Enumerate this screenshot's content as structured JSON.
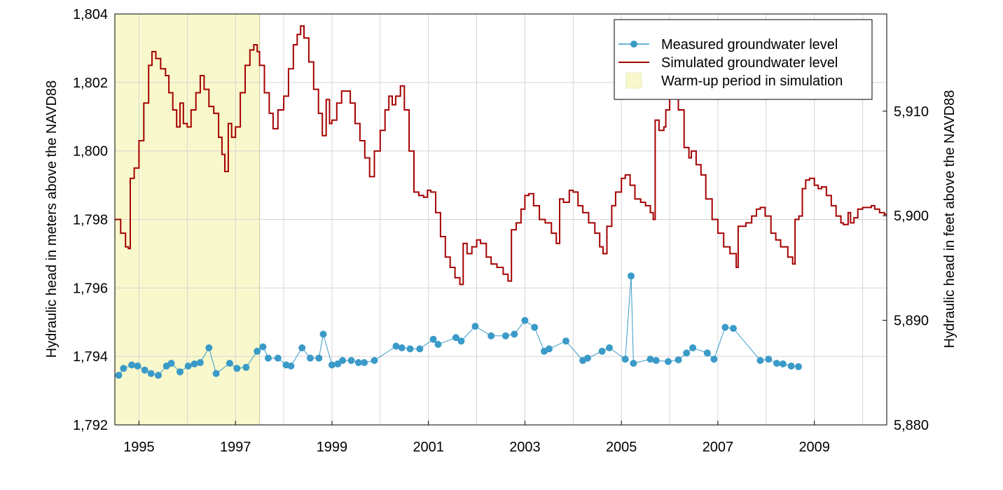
{
  "chart_data": {
    "type": "line",
    "xlabel": "",
    "ylabel_left": "Hydraulic head in meters above the NAVD88",
    "ylabel_right": "Hydraulic head in feet above the NAVD88",
    "xlim": [
      1994.5,
      2010.5
    ],
    "ylim_left": [
      1792,
      1804
    ],
    "ylim_right": [
      5880,
      5919.29
    ],
    "grid": true,
    "legend_placement": "top-right",
    "x_ticks": [
      {
        "value": 1995,
        "label": "1995"
      },
      {
        "value": 1997,
        "label": "1997"
      },
      {
        "value": 1999,
        "label": "1999"
      },
      {
        "value": 2001,
        "label": "2001"
      },
      {
        "value": 2003,
        "label": "2003"
      },
      {
        "value": 2005,
        "label": "2005"
      },
      {
        "value": 2007,
        "label": "2007"
      },
      {
        "value": 2009,
        "label": "2009"
      }
    ],
    "x_gridlines": [
      1995,
      1996,
      1997,
      1998,
      1999,
      2000,
      2001,
      2002,
      2003,
      2004,
      2005,
      2006,
      2007,
      2008,
      2009,
      2010
    ],
    "y_ticks_left": [
      {
        "value": 1792,
        "label": "1,792"
      },
      {
        "value": 1794,
        "label": "1,794"
      },
      {
        "value": 1796,
        "label": "1,796"
      },
      {
        "value": 1798,
        "label": "1,798"
      },
      {
        "value": 1800,
        "label": "1,800"
      },
      {
        "value": 1802,
        "label": "1,802"
      },
      {
        "value": 1804,
        "label": "1,804"
      }
    ],
    "y_ticks_right": [
      {
        "value": 5880,
        "label": "5,880"
      },
      {
        "value": 5890,
        "label": "5,890"
      },
      {
        "value": 5900,
        "label": "5,900"
      },
      {
        "value": 5910,
        "label": "5,910"
      }
    ],
    "shaded_regions": [
      {
        "name": "Warm-up period in simulation",
        "x_start": 1994.5,
        "x_end": 1997.5,
        "color": "#f8f8cc"
      }
    ],
    "legend": [
      {
        "label": "Measured groundwater level",
        "kind": "line-marker",
        "color": "#3a9ac8"
      },
      {
        "label": "Simulated groundwater level",
        "kind": "line",
        "color": "#a50000"
      },
      {
        "label": "Warm-up period in simulation",
        "kind": "patch",
        "color": "#f8f8cc"
      }
    ],
    "series": [
      {
        "name": "Simulated groundwater level",
        "color": "#a50000",
        "style": "step-line",
        "points": [
          [
            1994.5,
            1798.0
          ],
          [
            1994.62,
            1797.6
          ],
          [
            1994.72,
            1797.2
          ],
          [
            1994.78,
            1797.15
          ],
          [
            1994.82,
            1799.2
          ],
          [
            1994.9,
            1799.5
          ],
          [
            1995.0,
            1800.3
          ],
          [
            1995.1,
            1801.4
          ],
          [
            1995.2,
            1802.5
          ],
          [
            1995.27,
            1802.9
          ],
          [
            1995.35,
            1802.7
          ],
          [
            1995.45,
            1802.4
          ],
          [
            1995.55,
            1802.2
          ],
          [
            1995.62,
            1801.7
          ],
          [
            1995.7,
            1801.2
          ],
          [
            1995.78,
            1800.7
          ],
          [
            1995.85,
            1801.4
          ],
          [
            1995.92,
            1800.8
          ],
          [
            1996.0,
            1800.7
          ],
          [
            1996.08,
            1801.2
          ],
          [
            1996.18,
            1801.7
          ],
          [
            1996.27,
            1802.2
          ],
          [
            1996.35,
            1801.8
          ],
          [
            1996.45,
            1801.3
          ],
          [
            1996.55,
            1801.1
          ],
          [
            1996.65,
            1800.4
          ],
          [
            1996.72,
            1799.9
          ],
          [
            1996.78,
            1799.4
          ],
          [
            1996.85,
            1800.8
          ],
          [
            1996.92,
            1800.4
          ],
          [
            1997.0,
            1800.7
          ],
          [
            1997.1,
            1801.7
          ],
          [
            1997.2,
            1802.5
          ],
          [
            1997.3,
            1802.95
          ],
          [
            1997.38,
            1803.1
          ],
          [
            1997.45,
            1802.9
          ],
          [
            1997.5,
            1802.5
          ],
          [
            1997.6,
            1801.7
          ],
          [
            1997.7,
            1801.1
          ],
          [
            1997.78,
            1800.65
          ],
          [
            1997.88,
            1801.2
          ],
          [
            1998.0,
            1801.6
          ],
          [
            1998.1,
            1802.4
          ],
          [
            1998.2,
            1803.1
          ],
          [
            1998.28,
            1803.4
          ],
          [
            1998.35,
            1803.65
          ],
          [
            1998.42,
            1803.3
          ],
          [
            1998.52,
            1802.6
          ],
          [
            1998.62,
            1801.8
          ],
          [
            1998.72,
            1801.1
          ],
          [
            1998.8,
            1800.45
          ],
          [
            1998.88,
            1801.5
          ],
          [
            1998.95,
            1800.8
          ],
          [
            1999.0,
            1800.9
          ],
          [
            1999.1,
            1801.4
          ],
          [
            1999.2,
            1801.75
          ],
          [
            1999.28,
            1801.75
          ],
          [
            1999.38,
            1801.4
          ],
          [
            1999.48,
            1800.8
          ],
          [
            1999.58,
            1800.3
          ],
          [
            1999.68,
            1799.8
          ],
          [
            1999.78,
            1799.25
          ],
          [
            1999.88,
            1800.0
          ],
          [
            2000.0,
            1800.6
          ],
          [
            2000.1,
            1801.2
          ],
          [
            2000.18,
            1801.6
          ],
          [
            2000.25,
            1801.35
          ],
          [
            2000.32,
            1801.6
          ],
          [
            2000.42,
            1801.9
          ],
          [
            2000.5,
            1801.2
          ],
          [
            2000.6,
            1800.0
          ],
          [
            2000.7,
            1798.8
          ],
          [
            2000.8,
            1798.7
          ],
          [
            2000.9,
            1798.65
          ],
          [
            2000.98,
            1798.85
          ],
          [
            2001.05,
            1798.8
          ],
          [
            2001.15,
            1798.2
          ],
          [
            2001.25,
            1797.5
          ],
          [
            2001.35,
            1796.9
          ],
          [
            2001.45,
            1796.6
          ],
          [
            2001.55,
            1796.3
          ],
          [
            2001.65,
            1796.1
          ],
          [
            2001.72,
            1797.3
          ],
          [
            2001.8,
            1797.0
          ],
          [
            2001.9,
            1797.2
          ],
          [
            2002.0,
            1797.4
          ],
          [
            2002.08,
            1797.3
          ],
          [
            2002.2,
            1796.9
          ],
          [
            2002.3,
            1796.7
          ],
          [
            2002.42,
            1796.6
          ],
          [
            2002.55,
            1796.4
          ],
          [
            2002.65,
            1796.2
          ],
          [
            2002.72,
            1797.7
          ],
          [
            2002.82,
            1797.9
          ],
          [
            2002.92,
            1798.3
          ],
          [
            2003.0,
            1798.7
          ],
          [
            2003.08,
            1798.75
          ],
          [
            2003.18,
            1798.4
          ],
          [
            2003.3,
            1798.0
          ],
          [
            2003.42,
            1797.9
          ],
          [
            2003.55,
            1797.6
          ],
          [
            2003.65,
            1797.3
          ],
          [
            2003.72,
            1798.6
          ],
          [
            2003.8,
            1798.5
          ],
          [
            2003.92,
            1798.85
          ],
          [
            2004.0,
            1798.8
          ],
          [
            2004.1,
            1798.4
          ],
          [
            2004.2,
            1798.2
          ],
          [
            2004.32,
            1797.9
          ],
          [
            2004.45,
            1797.6
          ],
          [
            2004.55,
            1797.2
          ],
          [
            2004.62,
            1797.0
          ],
          [
            2004.7,
            1797.8
          ],
          [
            2004.8,
            1798.4
          ],
          [
            2004.88,
            1798.8
          ],
          [
            2005.0,
            1799.2
          ],
          [
            2005.08,
            1799.3
          ],
          [
            2005.18,
            1799.0
          ],
          [
            2005.28,
            1798.6
          ],
          [
            2005.4,
            1798.5
          ],
          [
            2005.5,
            1798.4
          ],
          [
            2005.6,
            1798.2
          ],
          [
            2005.66,
            1798.0
          ],
          [
            2005.7,
            1800.9
          ],
          [
            2005.78,
            1800.6
          ],
          [
            2005.88,
            1800.7
          ],
          [
            2005.92,
            1801.2
          ],
          [
            2006.0,
            1802.0
          ],
          [
            2006.08,
            1801.9
          ],
          [
            2006.18,
            1801.2
          ],
          [
            2006.3,
            1800.1
          ],
          [
            2006.4,
            1799.8
          ],
          [
            2006.45,
            1800.0
          ],
          [
            2006.55,
            1799.6
          ],
          [
            2006.65,
            1799.3
          ],
          [
            2006.75,
            1798.6
          ],
          [
            2006.88,
            1798.0
          ],
          [
            2007.0,
            1797.6
          ],
          [
            2007.12,
            1797.2
          ],
          [
            2007.25,
            1797.0
          ],
          [
            2007.38,
            1796.6
          ],
          [
            2007.42,
            1797.8
          ],
          [
            2007.5,
            1797.8
          ],
          [
            2007.58,
            1797.9
          ],
          [
            2007.7,
            1798.1
          ],
          [
            2007.8,
            1798.3
          ],
          [
            2007.88,
            1798.35
          ],
          [
            2007.98,
            1798.1
          ],
          [
            2008.1,
            1797.6
          ],
          [
            2008.2,
            1797.4
          ],
          [
            2008.3,
            1797.2
          ],
          [
            2008.45,
            1796.9
          ],
          [
            2008.55,
            1796.7
          ],
          [
            2008.6,
            1798.0
          ],
          [
            2008.68,
            1798.1
          ],
          [
            2008.75,
            1798.9
          ],
          [
            2008.82,
            1799.15
          ],
          [
            2008.9,
            1799.2
          ],
          [
            2009.0,
            1799.0
          ],
          [
            2009.08,
            1798.9
          ],
          [
            2009.15,
            1798.95
          ],
          [
            2009.25,
            1798.7
          ],
          [
            2009.35,
            1798.4
          ],
          [
            2009.45,
            1798.1
          ],
          [
            2009.55,
            1797.9
          ],
          [
            2009.6,
            1797.85
          ],
          [
            2009.7,
            1798.2
          ],
          [
            2009.75,
            1797.9
          ],
          [
            2009.82,
            1798.05
          ],
          [
            2009.9,
            1798.3
          ],
          [
            2010.0,
            1798.35
          ],
          [
            2010.1,
            1798.35
          ],
          [
            2010.18,
            1798.4
          ],
          [
            2010.25,
            1798.3
          ],
          [
            2010.35,
            1798.2
          ],
          [
            2010.45,
            1798.15
          ],
          [
            2010.5,
            1798.15
          ]
        ]
      },
      {
        "name": "Measured groundwater level",
        "color": "#3a9ac8",
        "style": "line-marker",
        "points": [
          [
            1994.58,
            1793.45
          ],
          [
            1994.68,
            1793.65
          ],
          [
            1994.85,
            1793.75
          ],
          [
            1994.97,
            1793.72
          ],
          [
            1995.12,
            1793.6
          ],
          [
            1995.25,
            1793.5
          ],
          [
            1995.4,
            1793.45
          ],
          [
            1995.57,
            1793.72
          ],
          [
            1995.67,
            1793.8
          ],
          [
            1995.85,
            1793.55
          ],
          [
            1996.02,
            1793.72
          ],
          [
            1996.15,
            1793.78
          ],
          [
            1996.27,
            1793.82
          ],
          [
            1996.45,
            1794.25
          ],
          [
            1996.6,
            1793.5
          ],
          [
            1996.88,
            1793.8
          ],
          [
            1997.03,
            1793.65
          ],
          [
            1997.22,
            1793.68
          ],
          [
            1997.45,
            1794.15
          ],
          [
            1997.57,
            1794.28
          ],
          [
            1997.68,
            1793.95
          ],
          [
            1997.88,
            1793.95
          ],
          [
            1998.05,
            1793.75
          ],
          [
            1998.15,
            1793.72
          ],
          [
            1998.38,
            1794.25
          ],
          [
            1998.55,
            1793.95
          ],
          [
            1998.73,
            1793.95
          ],
          [
            1998.82,
            1794.65
          ],
          [
            1999.0,
            1793.75
          ],
          [
            1999.12,
            1793.78
          ],
          [
            1999.22,
            1793.88
          ],
          [
            1999.4,
            1793.88
          ],
          [
            1999.55,
            1793.82
          ],
          [
            1999.67,
            1793.82
          ],
          [
            1999.88,
            1793.88
          ],
          [
            2000.33,
            1794.3
          ],
          [
            2000.45,
            1794.25
          ],
          [
            2000.62,
            1794.22
          ],
          [
            2000.82,
            1794.22
          ],
          [
            2001.1,
            1794.5
          ],
          [
            2001.2,
            1794.35
          ],
          [
            2001.57,
            1794.55
          ],
          [
            2001.68,
            1794.45
          ],
          [
            2001.97,
            1794.88
          ],
          [
            2002.3,
            1794.6
          ],
          [
            2002.6,
            1794.6
          ],
          [
            2002.78,
            1794.65
          ],
          [
            2003.0,
            1795.05
          ],
          [
            2003.2,
            1794.85
          ],
          [
            2003.4,
            1794.15
          ],
          [
            2003.5,
            1794.22
          ],
          [
            2003.85,
            1794.45
          ],
          [
            2004.2,
            1793.88
          ],
          [
            2004.3,
            1793.95
          ],
          [
            2004.6,
            1794.15
          ],
          [
            2004.75,
            1794.25
          ],
          [
            2005.08,
            1793.92
          ],
          [
            2005.2,
            1796.35
          ],
          [
            2005.25,
            1793.8
          ],
          [
            2005.6,
            1793.92
          ],
          [
            2005.72,
            1793.88
          ],
          [
            2005.97,
            1793.85
          ],
          [
            2006.18,
            1793.9
          ],
          [
            2006.35,
            1794.1
          ],
          [
            2006.48,
            1794.25
          ],
          [
            2006.78,
            1794.1
          ],
          [
            2006.92,
            1793.92
          ],
          [
            2007.15,
            1794.85
          ],
          [
            2007.32,
            1794.82
          ],
          [
            2007.88,
            1793.88
          ],
          [
            2008.05,
            1793.92
          ],
          [
            2008.22,
            1793.8
          ],
          [
            2008.35,
            1793.78
          ],
          [
            2008.52,
            1793.72
          ],
          [
            2008.67,
            1793.7
          ]
        ]
      }
    ]
  }
}
